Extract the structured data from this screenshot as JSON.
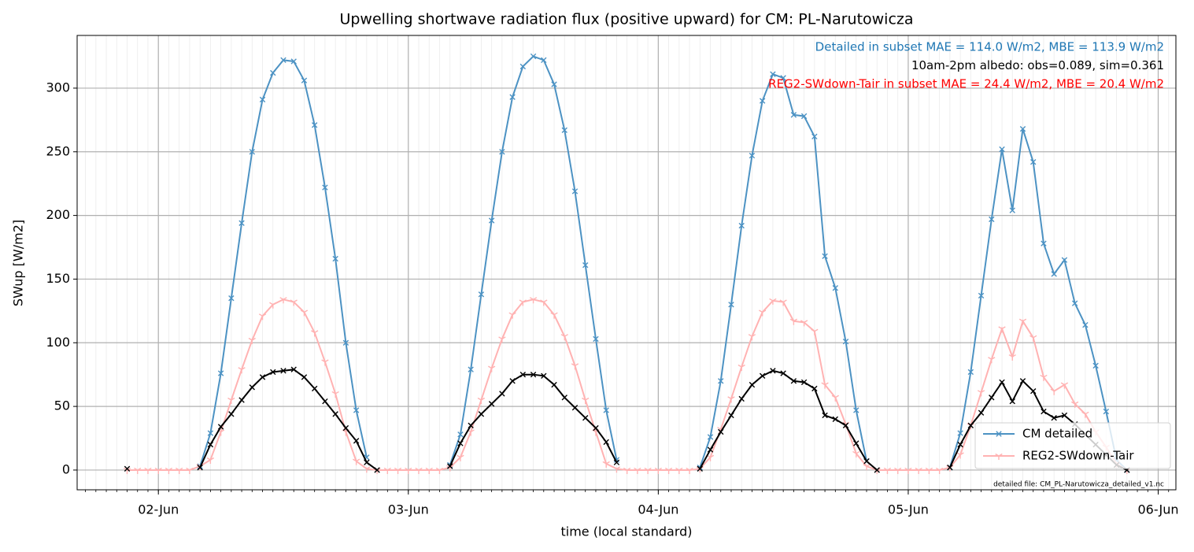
{
  "chart_data": {
    "type": "line",
    "title": "Upwelling shortwave radiation flux (positive upward) for CM: PL-Narutowicza",
    "xlabel": "time (local standard)",
    "ylabel": "SWup [W/m2]",
    "x": [
      -3,
      -2,
      -1,
      0,
      1,
      2,
      3,
      4,
      5,
      6,
      7,
      8,
      9,
      10,
      11,
      12,
      13,
      14,
      15,
      16,
      17,
      18,
      19,
      20,
      21,
      22,
      23,
      24,
      25,
      26,
      27,
      28,
      29,
      30,
      31,
      32,
      33,
      34,
      35,
      36,
      37,
      38,
      39,
      40,
      41,
      42,
      43,
      44,
      45,
      46,
      47,
      48,
      49,
      50,
      51,
      52,
      53,
      54,
      55,
      56,
      57,
      58,
      59,
      60,
      61,
      62,
      63,
      64,
      65,
      66,
      67,
      68,
      69,
      70,
      71,
      72,
      73,
      74,
      75,
      76,
      77,
      78,
      79,
      80,
      81,
      82,
      83,
      84,
      85,
      86,
      87,
      88,
      89,
      90,
      91,
      92,
      93
    ],
    "xlim": [
      -7.8,
      97.7
    ],
    "xticks": [
      {
        "value": 0,
        "label": "02-Jun"
      },
      {
        "value": 24,
        "label": "03-Jun"
      },
      {
        "value": 48,
        "label": "04-Jun"
      },
      {
        "value": 72,
        "label": "05-Jun"
      },
      {
        "value": 96,
        "label": "06-Jun"
      }
    ],
    "x_minor_tick_step": 1,
    "ylim": [
      -15.5,
      341.4
    ],
    "yticks": [
      0,
      50,
      100,
      150,
      200,
      250,
      300
    ],
    "grid": true,
    "legend": "lower right",
    "series": [
      {
        "name": "CM detailed",
        "color": "#4c92c3",
        "marker": "x",
        "values": [
          null,
          null,
          null,
          null,
          null,
          null,
          null,
          3,
          29,
          76,
          135,
          194,
          250,
          291,
          312,
          322,
          321,
          306,
          271,
          222,
          166,
          100,
          47,
          10,
          null,
          null,
          null,
          null,
          null,
          null,
          null,
          4,
          28,
          79,
          138,
          196,
          250,
          293,
          317,
          325,
          322,
          303,
          267,
          219,
          161,
          103,
          47,
          8,
          null,
          null,
          null,
          null,
          null,
          null,
          null,
          2,
          26,
          70,
          130,
          192,
          247,
          290,
          311,
          308,
          279,
          278,
          262,
          168,
          143,
          101,
          47,
          7,
          null,
          null,
          null,
          null,
          null,
          null,
          null,
          2,
          29,
          77,
          137,
          197,
          252,
          204,
          268,
          242,
          178,
          154,
          165,
          131,
          114,
          82,
          46,
          8,
          0
        ]
      },
      {
        "name": "REG2-SWdown-Tair",
        "color": "#ffb2b2",
        "marker": "tri",
        "values": [
          0,
          0,
          0,
          0,
          0,
          0,
          0,
          3,
          8,
          30,
          55,
          79,
          102,
          121,
          130,
          134,
          132,
          124,
          108,
          85,
          60,
          30,
          7,
          1,
          0,
          0,
          0,
          0,
          0,
          0,
          0,
          2,
          10,
          30,
          55,
          80,
          103,
          122,
          132,
          134,
          132,
          122,
          105,
          82,
          55,
          30,
          5,
          1,
          0,
          0,
          0,
          0,
          0,
          0,
          0,
          1,
          10,
          32,
          56,
          81,
          105,
          124,
          133,
          132,
          117,
          116,
          109,
          67,
          57,
          36,
          13,
          3,
          0,
          0,
          0,
          0,
          0,
          0,
          0,
          2,
          12,
          35,
          61,
          87,
          111,
          89,
          117,
          104,
          73,
          62,
          67,
          52,
          44,
          30,
          18,
          5,
          0
        ]
      },
      {
        "color": "#000000",
        "marker": "x",
        "values": [
          1,
          null,
          null,
          null,
          null,
          null,
          null,
          2,
          20,
          34,
          44,
          55,
          65,
          73,
          77,
          78,
          79,
          73,
          64,
          54,
          44,
          33,
          23,
          6,
          0,
          null,
          null,
          null,
          null,
          null,
          null,
          3,
          21,
          35,
          44,
          52,
          60,
          70,
          75,
          75,
          74,
          67,
          57,
          49,
          41,
          33,
          22,
          6,
          null,
          null,
          null,
          null,
          null,
          null,
          null,
          1,
          16,
          30,
          43,
          56,
          67,
          74,
          78,
          76,
          70,
          69,
          64,
          43,
          40,
          35,
          21,
          7,
          0,
          null,
          null,
          null,
          null,
          null,
          null,
          2,
          20,
          35,
          45,
          57,
          69,
          54,
          70,
          62,
          46,
          41,
          43,
          36,
          28,
          20,
          12,
          4,
          0
        ]
      }
    ],
    "annotations": [
      {
        "text": "Detailed in subset MAE = 114.0 W/m2, MBE = 113.9 W/m2",
        "color": "#1f77b4"
      },
      {
        "text": "10am-2pm albedo: obs=0.089, sim=0.361",
        "color": "#000000"
      },
      {
        "text": "REG2-SWdown-Tair in subset MAE = 24.4 W/m2, MBE = 20.4 W/m2",
        "color": "#ff0000"
      }
    ],
    "footnote": "detailed file: CM_PL-Narutowicza_detailed_v1.nc"
  }
}
